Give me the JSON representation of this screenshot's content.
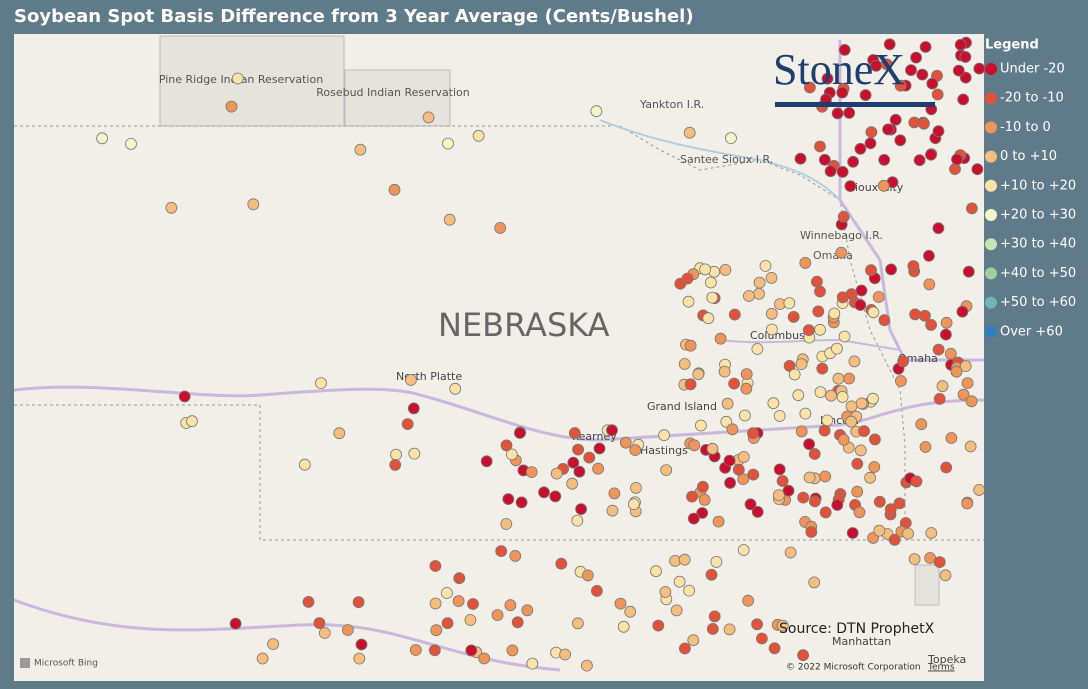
{
  "header": {
    "title": "Soybean Spot Basis Difference from 3 Year Average (Cents/Bushel)"
  },
  "legend": {
    "title": "Legend",
    "items": [
      {
        "label": "Under -20",
        "color": "#c8102e"
      },
      {
        "label": "-20 to -10",
        "color": "#e0533a"
      },
      {
        "label": "-10 to 0",
        "color": "#f0955a"
      },
      {
        "label": "0 to +10",
        "color": "#f5be7e"
      },
      {
        "label": "+10 to +20",
        "color": "#fbe3a7"
      },
      {
        "label": "+20 to +30",
        "color": "#f2f5c8"
      },
      {
        "label": "+30 to +40",
        "color": "#c9e4b0"
      },
      {
        "label": "+40 to +50",
        "color": "#9fcf9e"
      },
      {
        "label": "+50 to +60",
        "color": "#72b4b5"
      },
      {
        "label": "Over +60",
        "color": "#2f7fc0"
      }
    ]
  },
  "map": {
    "labels": {
      "state": "NEBRASKA",
      "pine_ridge": "Pine Ridge Indian Reservation",
      "rosebud": "Rosebud Indian Reservation",
      "yankton": "Yankton I.R.",
      "santee": "Santee Sioux I.R.",
      "sioux_city": "Sioux City",
      "winnebago": "Winnebago I.R.",
      "omaha_ir": "Omaha",
      "omaha": "Omaha",
      "columbus": "Columbus",
      "north_platte": "North Platte",
      "grand_island": "Grand Island",
      "kearney": "Kearney",
      "hastings": "Hastings",
      "lincoln": "Lincoln",
      "manhattan": "Manhattan",
      "topeka": "Topeka"
    },
    "logo": "StoneX",
    "source": "Source: DTN ProphetX",
    "copyright": "© 2022 Microsoft Corporation",
    "terms": "Terms",
    "bing": "Microsoft Bing"
  }
}
